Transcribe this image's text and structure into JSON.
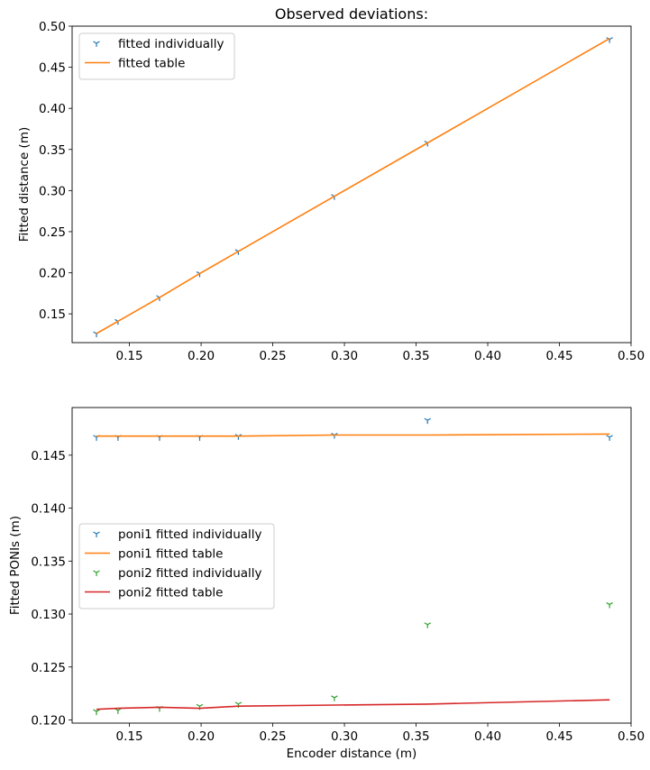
{
  "chart_data": [
    {
      "type": "line",
      "title": "Observed deviations:",
      "xlabel": "",
      "ylabel": "Fitted distance (m)",
      "xlim": [
        0.11,
        0.5
      ],
      "ylim": [
        0.115,
        0.5
      ],
      "xticks": [
        0.15,
        0.2,
        0.25,
        0.3,
        0.35,
        0.4,
        0.45,
        0.5
      ],
      "yticks": [
        0.15,
        0.2,
        0.25,
        0.3,
        0.35,
        0.4,
        0.45,
        0.5
      ],
      "grid": false,
      "legend_position": "top-left",
      "series": [
        {
          "name": "fitted individually",
          "kind": "scatter",
          "marker": "tri-down",
          "color": "#1f77b4",
          "points": [
            [
              0.127,
              0.126
            ],
            [
              0.142,
              0.141
            ],
            [
              0.171,
              0.17
            ],
            [
              0.199,
              0.199
            ],
            [
              0.226,
              0.226
            ],
            [
              0.293,
              0.293
            ],
            [
              0.358,
              0.358
            ],
            [
              0.485,
              0.484
            ]
          ]
        },
        {
          "name": "fitted table",
          "kind": "line",
          "color": "#ff7f0e",
          "points": [
            [
              0.127,
              0.126
            ],
            [
              0.142,
              0.141
            ],
            [
              0.171,
              0.17
            ],
            [
              0.199,
              0.199
            ],
            [
              0.226,
              0.226
            ],
            [
              0.293,
              0.293
            ],
            [
              0.358,
              0.358
            ],
            [
              0.485,
              0.485
            ]
          ]
        }
      ]
    },
    {
      "type": "line",
      "title": "",
      "xlabel": "Encoder distance (m)",
      "ylabel": "Fitted PONIs (m)",
      "xlim": [
        0.11,
        0.5
      ],
      "ylim": [
        0.1197,
        0.1495
      ],
      "xticks": [
        0.15,
        0.2,
        0.25,
        0.3,
        0.35,
        0.4,
        0.45,
        0.5
      ],
      "yticks": [
        0.12,
        0.125,
        0.13,
        0.135,
        0.14,
        0.145
      ],
      "grid": false,
      "legend_position": "center-left",
      "series": [
        {
          "name": "poni1 fitted individually",
          "kind": "scatter",
          "marker": "tri-down",
          "color": "#1f77b4",
          "points": [
            [
              0.127,
              0.1467
            ],
            [
              0.142,
              0.1467
            ],
            [
              0.171,
              0.1467
            ],
            [
              0.199,
              0.1467
            ],
            [
              0.226,
              0.1468
            ],
            [
              0.293,
              0.1469
            ],
            [
              0.358,
              0.1483
            ],
            [
              0.485,
              0.1467
            ]
          ]
        },
        {
          "name": "poni1 fitted table",
          "kind": "line",
          "color": "#ff7f0e",
          "points": [
            [
              0.127,
              0.1468
            ],
            [
              0.142,
              0.1468
            ],
            [
              0.171,
              0.1468
            ],
            [
              0.199,
              0.1468
            ],
            [
              0.226,
              0.1468
            ],
            [
              0.293,
              0.1469
            ],
            [
              0.358,
              0.1469
            ],
            [
              0.485,
              0.147
            ]
          ]
        },
        {
          "name": "poni2 fitted individually",
          "kind": "scatter",
          "marker": "tri-down",
          "color": "#2ca02c",
          "points": [
            [
              0.127,
              0.1208
            ],
            [
              0.142,
              0.1209
            ],
            [
              0.171,
              0.1211
            ],
            [
              0.199,
              0.1213
            ],
            [
              0.226,
              0.1215
            ],
            [
              0.293,
              0.1221
            ],
            [
              0.358,
              0.129
            ],
            [
              0.485,
              0.1309
            ]
          ]
        },
        {
          "name": "poni2 fitted table",
          "kind": "line",
          "color": "#d62728",
          "points": [
            [
              0.127,
              0.121
            ],
            [
              0.142,
              0.1211
            ],
            [
              0.171,
              0.1212
            ],
            [
              0.199,
              0.1211
            ],
            [
              0.226,
              0.1213
            ],
            [
              0.293,
              0.1214
            ],
            [
              0.358,
              0.1215
            ],
            [
              0.485,
              0.1219
            ]
          ]
        }
      ]
    }
  ]
}
